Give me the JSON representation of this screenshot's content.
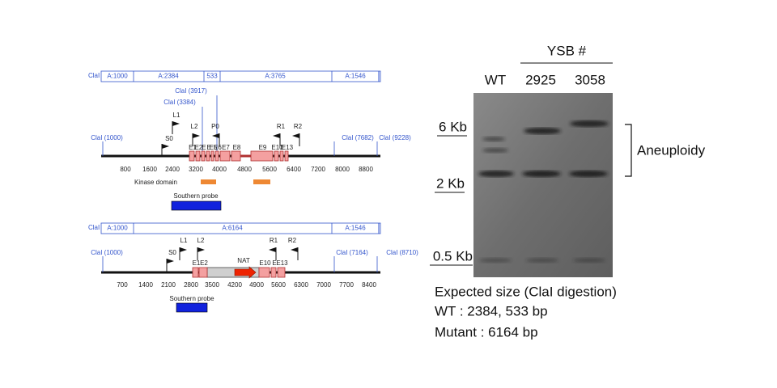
{
  "top_map": {
    "fragment_prefix": "ClaI",
    "fragments": [
      "A:1000",
      "A:2384",
      "533",
      "A:3765",
      "A:1546"
    ],
    "sites": [
      "ClaI (1000)",
      "ClaI (3917)",
      "ClaI (3384)",
      "ClaI (7682)",
      "ClaI (9228)"
    ],
    "primers": [
      "S0",
      "L1",
      "L2",
      "P0",
      "R1",
      "R2"
    ],
    "exons": [
      "E1",
      "E2",
      "E",
      "E",
      "E5",
      "E6",
      "E7",
      "E8",
      "E9",
      "E10",
      "E",
      "E13"
    ],
    "scale": [
      800,
      1600,
      2400,
      3200,
      4000,
      4800,
      5600,
      6400,
      7200,
      8000,
      8800
    ],
    "kinase_label": "Kinase domain",
    "probe_label": "Southern probe"
  },
  "bottom_map": {
    "fragment_prefix": "ClaI",
    "fragments": [
      "A:1000",
      "A:6164",
      "A:1546"
    ],
    "sites": [
      "ClaI (1000)",
      "ClaI (7164)",
      "ClaI (8710)"
    ],
    "primers": [
      "S0",
      "L1",
      "L2",
      "R1",
      "R2"
    ],
    "exons": [
      "E1",
      "E2",
      "E10",
      "E",
      "E13"
    ],
    "marker_label": "NAT",
    "scale": [
      700,
      1400,
      2100,
      2800,
      3500,
      4200,
      4900,
      5600,
      6300,
      7000,
      7700,
      8400
    ],
    "probe_label": "Southern probe"
  },
  "gel": {
    "group_label": "YSB #",
    "lanes": [
      "WT",
      "2925",
      "3058"
    ],
    "markers": [
      "6 Kb",
      "2 Kb",
      "0.5 Kb"
    ],
    "annotation": "Aneuploidy"
  },
  "caption": {
    "lines": [
      "Expected size (ClaI digestion)",
      "WT : 2384, 533 bp",
      "Mutant : 6164 bp"
    ]
  }
}
